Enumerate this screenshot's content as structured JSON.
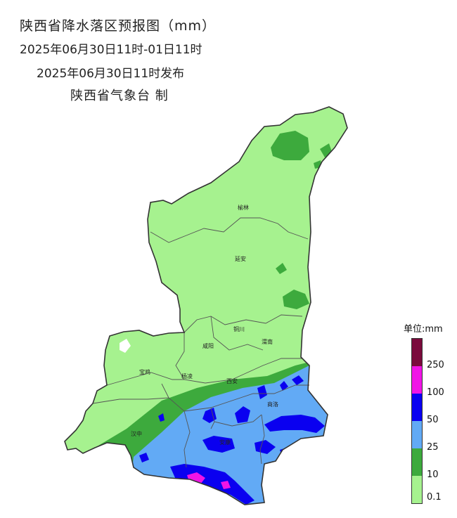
{
  "title": {
    "line1": "陕西省降水落区预报图（mm）",
    "line2": "2025年06月30日11时-01日11时",
    "line3": "2025年06月30日11时发布",
    "line4": "陕西省气象台 制"
  },
  "cities": [
    "榆林",
    "延安",
    "铜川",
    "咸阳",
    "渭南",
    "宝鸡",
    "杨凌",
    "西安",
    "商洛",
    "汉中",
    "安康"
  ],
  "legend": {
    "title": "单位:mm",
    "classes": [
      {
        "color": "#7a0a3c"
      },
      {
        "color": "#f014e6"
      },
      {
        "color": "#0a00f0"
      },
      {
        "color": "#62aaf5"
      },
      {
        "color": "#3daa3d"
      },
      {
        "color": "#a6f28f"
      }
    ],
    "labels": [
      "250",
      "100",
      "50",
      "25",
      "10",
      "0.1"
    ]
  }
}
